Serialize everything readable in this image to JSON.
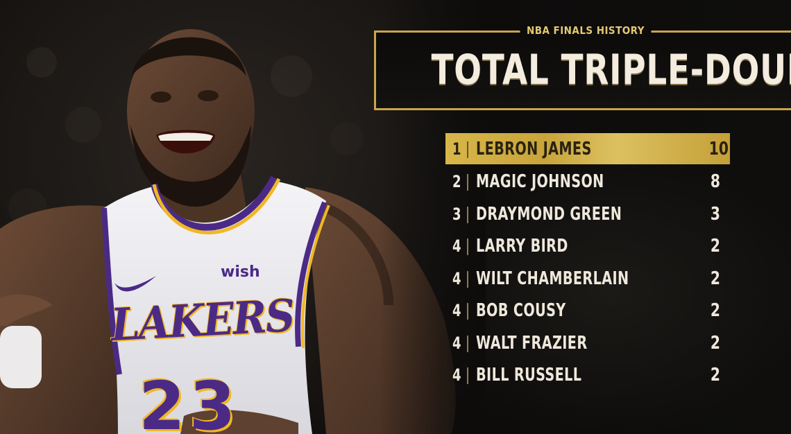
{
  "header": {
    "kicker": "NBA FINALS HISTORY",
    "title": "TOTAL TRIPLE-DOUBLES"
  },
  "jersey": {
    "team": "LAKERS",
    "sponsor": "wish",
    "number": "23"
  },
  "leaderboard": [
    {
      "rank": "1",
      "name": "LEBRON JAMES",
      "value": "10"
    },
    {
      "rank": "2",
      "name": "MAGIC JOHNSON",
      "value": "8"
    },
    {
      "rank": "3",
      "name": "DRAYMOND GREEN",
      "value": "3"
    },
    {
      "rank": "4",
      "name": "LARRY BIRD",
      "value": "2"
    },
    {
      "rank": "4",
      "name": "WILT CHAMBERLAIN",
      "value": "2"
    },
    {
      "rank": "4",
      "name": "BOB COUSY",
      "value": "2"
    },
    {
      "rank": "4",
      "name": "WALT FRAZIER",
      "value": "2"
    },
    {
      "rank": "4",
      "name": "BILL RUSSELL",
      "value": "2"
    }
  ],
  "colors": {
    "gold": "#c9a64a",
    "highlight": "#d8b64a",
    "text": "#efe8dc",
    "jersey_purple": "#4b2a86",
    "jersey_gold": "#f0b824"
  }
}
